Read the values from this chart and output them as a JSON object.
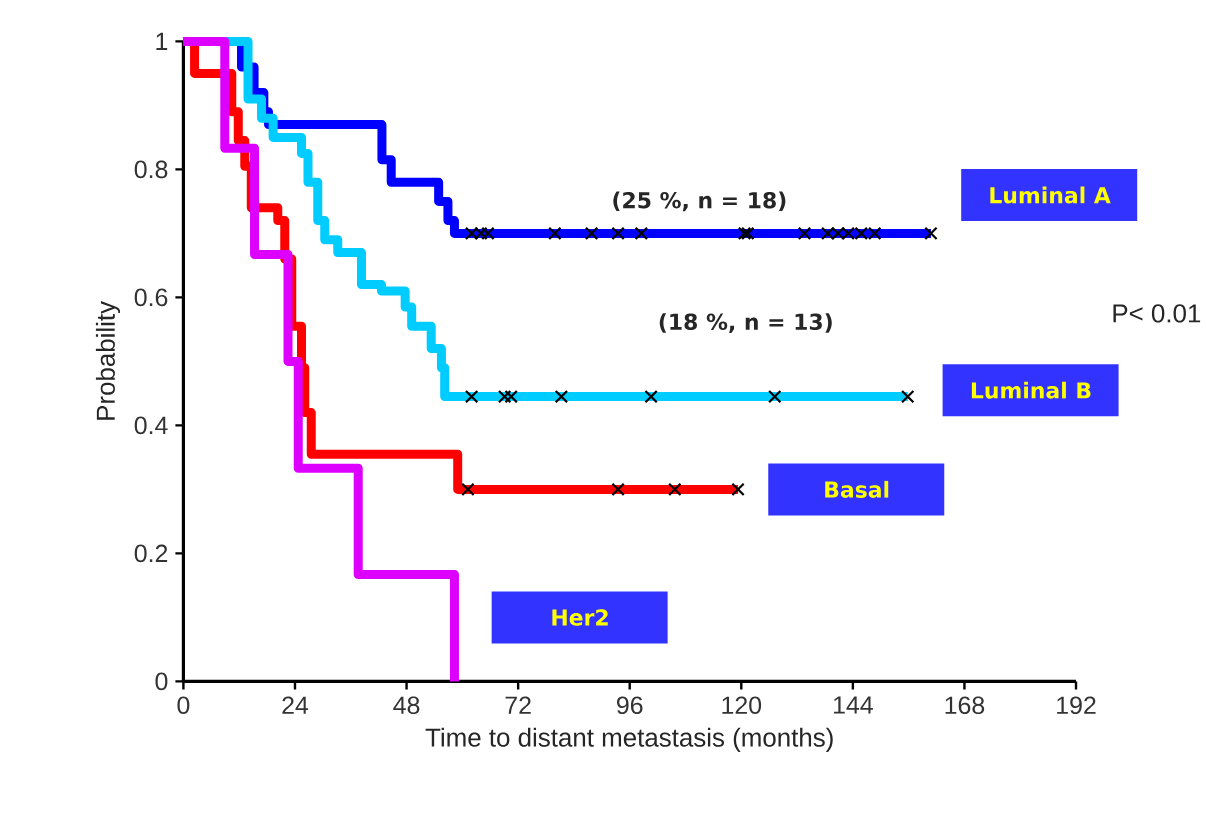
{
  "chart_data": {
    "type": "step",
    "xlabel": "Time to distant metastasis (months)",
    "ylabel": "Probability",
    "xlim": [
      0,
      192
    ],
    "ylim": [
      0,
      1
    ],
    "xticks": [
      0,
      24,
      48,
      72,
      96,
      120,
      144,
      168,
      192
    ],
    "yticks": [
      0,
      0.2,
      0.4,
      0.6,
      0.8,
      1
    ],
    "series": [
      {
        "name": "Luminal A",
        "color": "#0000ff",
        "x": [
          0,
          12.5,
          15.2,
          17.3,
          18.3,
          42.7,
          44.7,
          54.9,
          56.9,
          58.3,
          160.8
        ],
        "values": [
          1,
          0.96,
          0.92,
          0.89,
          0.87,
          0.815,
          0.78,
          0.75,
          0.72,
          0.7,
          0.7
        ]
      },
      {
        "name": "Luminal B",
        "color": "#00ccff",
        "x": [
          0,
          13.9,
          16.8,
          19.3,
          25.4,
          26.8,
          28.9,
          30.4,
          33.2,
          38.3,
          42.6,
          47.7,
          49.1,
          53.3,
          55.5,
          56.2,
          155.8
        ],
        "values": [
          1,
          0.91,
          0.88,
          0.85,
          0.825,
          0.78,
          0.72,
          0.69,
          0.67,
          0.62,
          0.61,
          0.585,
          0.555,
          0.52,
          0.49,
          0.445,
          0.445
        ]
      },
      {
        "name": "Basal",
        "color": "#ff0000",
        "x": [
          0,
          2.4,
          10.4,
          11.8,
          13.2,
          14.6,
          20.3,
          21.8,
          23.3,
          25.4,
          26.1,
          27.5,
          59,
          119.3
        ],
        "values": [
          1,
          0.95,
          0.89,
          0.845,
          0.805,
          0.74,
          0.72,
          0.66,
          0.555,
          0.49,
          0.42,
          0.355,
          0.3,
          0.3
        ]
      },
      {
        "name": "Her2",
        "color": "#dd00ff",
        "x": [
          0,
          8.9,
          15.3,
          22.5,
          24.7,
          37.6,
          58.3
        ],
        "values": [
          1,
          0.833,
          0.667,
          0.5,
          0.333,
          0.167,
          0
        ]
      },
      {
        "type": "scatter",
        "marker": "cross",
        "color": "#000000",
        "x": [
          62,
          64,
          65.5,
          79.9,
          87.8,
          93.5,
          98.5,
          120.7,
          121.4,
          133.6,
          138.6,
          140.8,
          143,
          145.8,
          148.7,
          160.8,
          62,
          69.1,
          70.5,
          81.3,
          100.6,
          127.2,
          155.8,
          61.2,
          93.5,
          105.7,
          119.3
        ],
        "values": [
          0.7,
          0.7,
          0.7,
          0.7,
          0.7,
          0.7,
          0.7,
          0.7,
          0.7,
          0.7,
          0.7,
          0.7,
          0.7,
          0.7,
          0.7,
          0.7,
          0.445,
          0.445,
          0.445,
          0.445,
          0.445,
          0.445,
          0.445,
          0.3,
          0.3,
          0.3,
          0.3
        ]
      }
    ],
    "annotations": [
      "(25 %, n = 18)",
      "(18 %, n = 13)",
      "P< 0.01"
    ]
  }
}
